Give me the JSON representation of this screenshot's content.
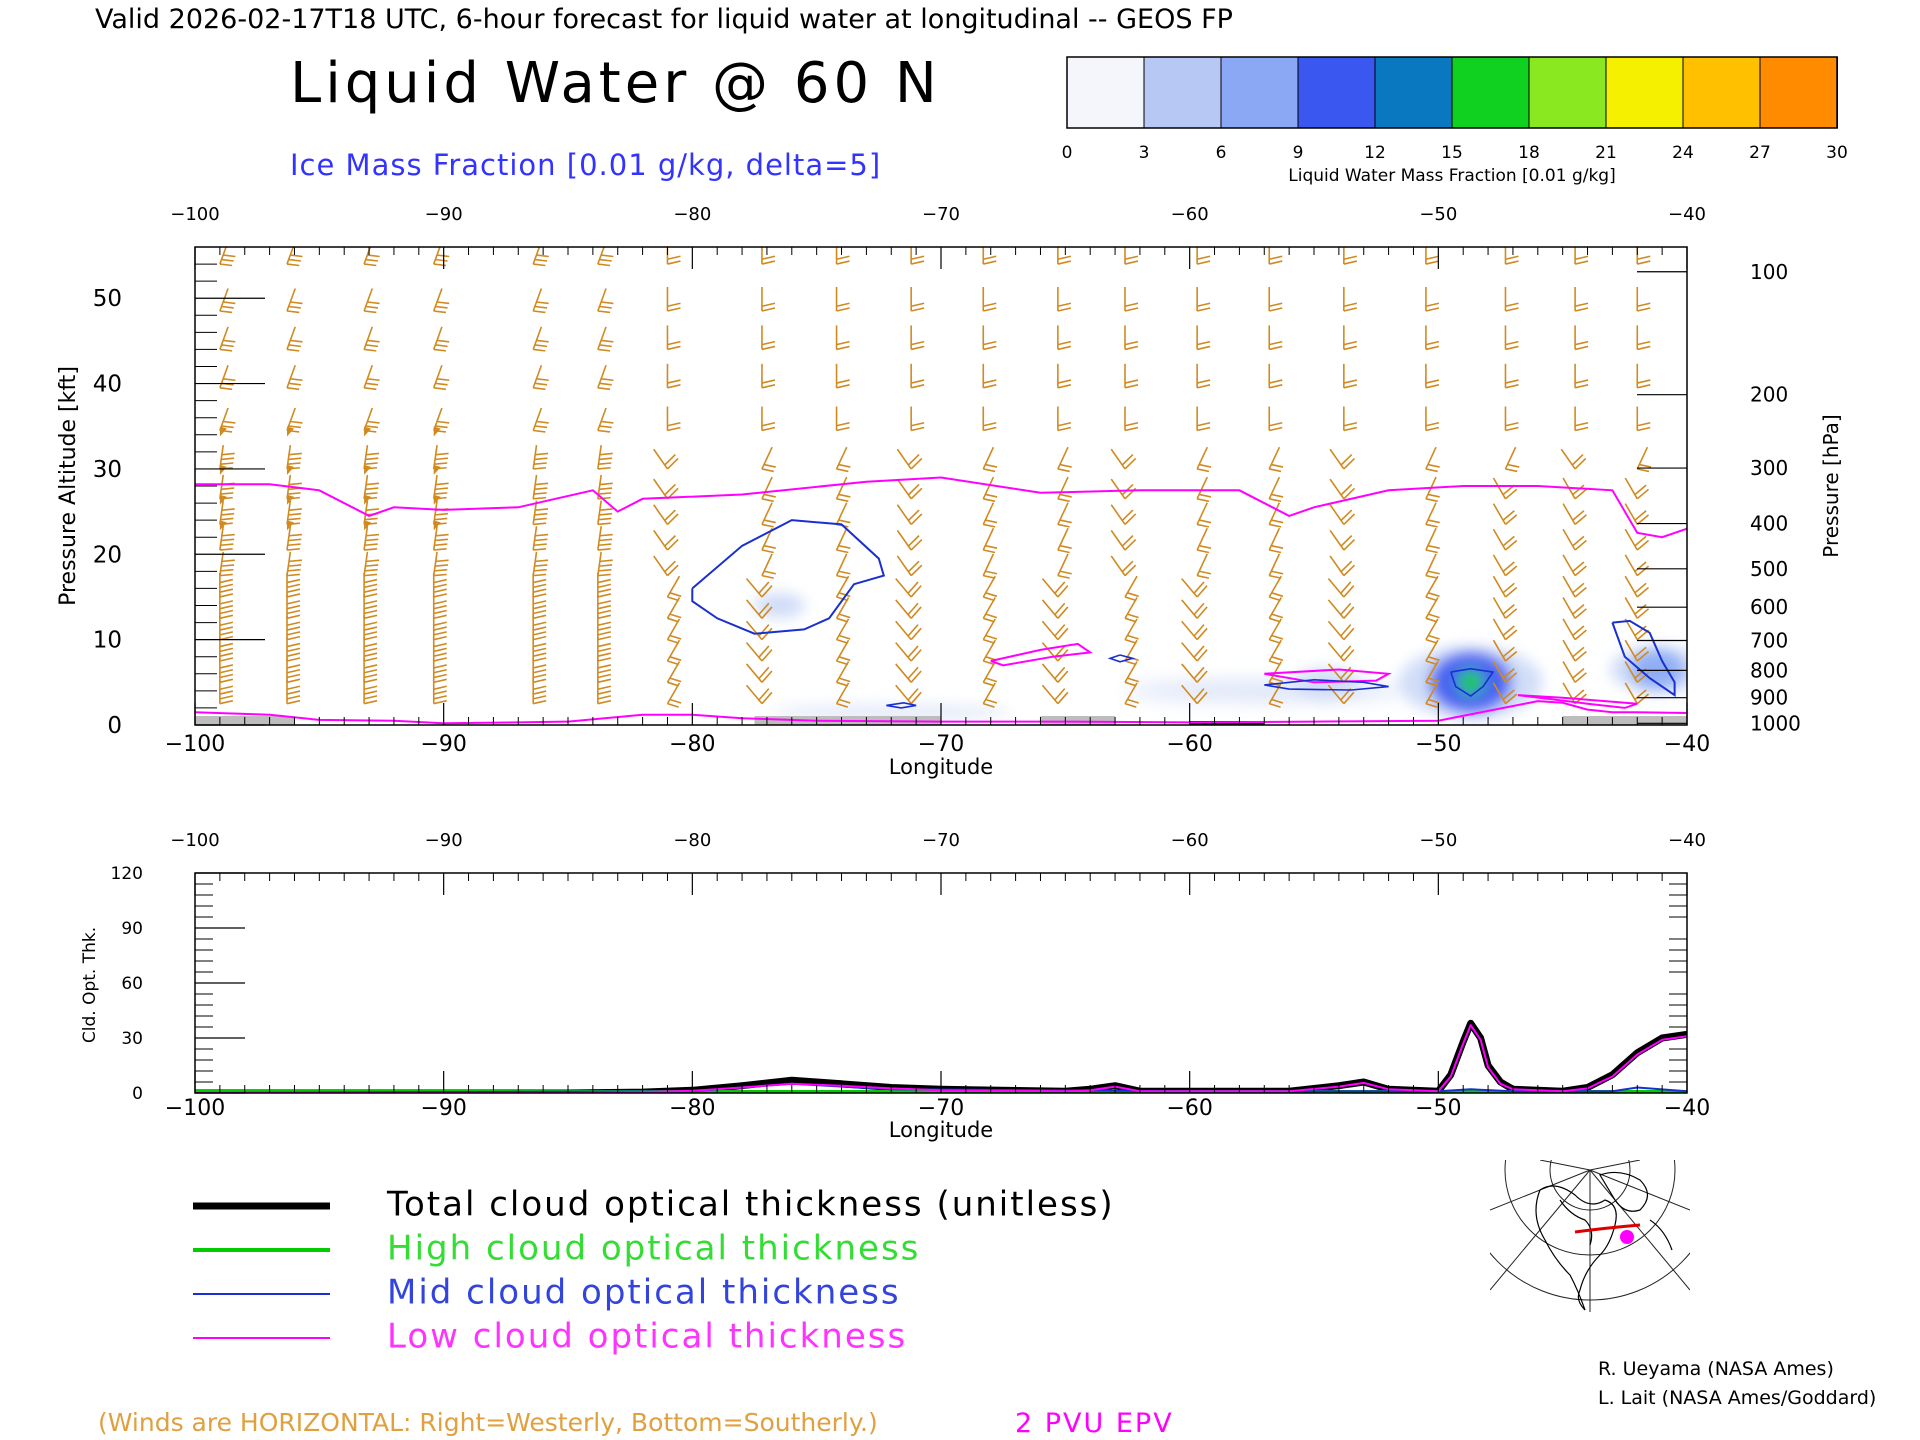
{
  "header": {
    "valid_line": "Valid 2026-02-17T18 UTC, 6-hour forecast for liquid water at longitudinal -- GEOS FP",
    "title": "Liquid Water @ 60 N",
    "subtitle": "Ice Mass Fraction [0.01 g/kg, delta=5]"
  },
  "colors": {
    "wind_barb": "#d08a20",
    "ice_contour": "#1a2fd0",
    "pv_line": "#ff00ff",
    "total": "#000000",
    "high": "#00cc00",
    "mid": "#1a2fd0",
    "low": "#ff00ff",
    "subtitle": "#3333ff",
    "winds_note": "#e0a040"
  },
  "colorbar": {
    "label": "Liquid Water Mass Fraction [0.01 g/kg]",
    "ticks": [
      0,
      3,
      6,
      9,
      12,
      15,
      18,
      21,
      24,
      27,
      30
    ],
    "colors": [
      "#f4f6fc",
      "#b8c8f4",
      "#8aa8f4",
      "#3a58f0",
      "#0a78c0",
      "#10d020",
      "#8ae820",
      "#f4f000",
      "#ffc000",
      "#ff8c00",
      "#ff3000"
    ]
  },
  "chart_data": [
    {
      "type": "heatmap",
      "title": "Liquid Water @ 60 N",
      "xlabel": "Longitude",
      "ylabel": "Pressure Altitude [kft]",
      "y2label": "Pressure [hPa]",
      "xlim": [
        -100,
        -40
      ],
      "ylim": [
        0,
        56
      ],
      "x_ticks": [
        -100,
        -90,
        -80,
        -70,
        -60,
        -50,
        -40
      ],
      "y_ticks": [
        0,
        10,
        20,
        30,
        40,
        50
      ],
      "pressure_ticks": [
        {
          "hPa": 100,
          "kft": 53.1
        },
        {
          "hPa": 200,
          "kft": 38.7
        },
        {
          "hPa": 300,
          "kft": 30.1
        },
        {
          "hPa": 400,
          "kft": 23.6
        },
        {
          "hPa": 500,
          "kft": 18.3
        },
        {
          "hPa": 600,
          "kft": 13.8
        },
        {
          "hPa": 700,
          "kft": 9.9
        },
        {
          "hPa": 800,
          "kft": 6.4
        },
        {
          "hPa": 900,
          "kft": 3.2
        },
        {
          "hPa": 1000,
          "kft": 0.2
        }
      ],
      "pv2_line": {
        "name": "2 PVU EPV",
        "lon": [
          -100,
          -97,
          -95,
          -93,
          -92,
          -90,
          -87,
          -84,
          -83,
          -82,
          -78,
          -73,
          -70,
          -66,
          -62,
          -58,
          -56,
          -55,
          -52,
          -49,
          -46,
          -43,
          -42,
          -41,
          -40
        ],
        "kft": [
          28.2,
          28.2,
          27.5,
          24.5,
          25.5,
          25.2,
          25.5,
          27.5,
          25.0,
          26.5,
          27.0,
          28.5,
          29.0,
          27.2,
          27.5,
          27.5,
          24.5,
          25.5,
          27.5,
          28.0,
          28.0,
          27.5,
          22.5,
          22.0,
          23.0
        ]
      },
      "pv2_low_line": {
        "lon": [
          -100,
          -97,
          -95,
          -92,
          -90,
          -87,
          -85,
          -82,
          -80,
          -78,
          -75,
          -70,
          -65,
          -60,
          -55,
          -50,
          -46,
          -45,
          -44,
          -43,
          -42,
          -40
        ],
        "kft": [
          1.5,
          1.2,
          0.6,
          0.5,
          0.2,
          0.3,
          0.4,
          1.2,
          1.2,
          0.8,
          0.5,
          0.4,
          0.4,
          0.3,
          0.4,
          0.5,
          2.8,
          2.6,
          1.8,
          1.5,
          1.5,
          1.4
        ]
      },
      "ice_contours": [
        {
          "lon": [
            -80,
            -78,
            -76,
            -74,
            -72.5,
            -72.3,
            -73.5,
            -74.5,
            -75.5,
            -77.5,
            -79,
            -80,
            -80
          ],
          "kft": [
            16,
            21,
            24,
            23.5,
            19.5,
            17.5,
            16.5,
            12.5,
            11.2,
            10.7,
            12.5,
            14.5,
            16
          ]
        },
        {
          "lon": [
            -43,
            -42.3,
            -41.5,
            -41,
            -40.5,
            -40.5,
            -41.5,
            -42.5,
            -43
          ],
          "kft": [
            12,
            12.2,
            10.8,
            7.5,
            5,
            3.5,
            5.5,
            8,
            12
          ]
        }
      ],
      "liquid_blobs": [
        {
          "lon": -48.7,
          "kft": 5.0,
          "peak": 17
        },
        {
          "lon": -41.2,
          "kft": 6.5,
          "peak": 9
        },
        {
          "lon": -54.5,
          "kft": 4.8,
          "peak": 4
        },
        {
          "lon": -76.5,
          "kft": 14.0,
          "peak": 2
        }
      ],
      "wind_columns_lon": [
        -99,
        -96.3,
        -93.2,
        -90.4,
        -86.4,
        -83.8,
        -81,
        -77.2,
        -74.2,
        -71.2,
        -68.3,
        -65.3,
        -62.6,
        -59.7,
        -56.8,
        -53.8,
        -50.5,
        -47.3,
        -44.5,
        -42
      ]
    },
    {
      "type": "line",
      "xlabel": "Longitude",
      "ylabel": "Cld. Opt. Thk.",
      "xlim": [
        -100,
        -40
      ],
      "ylim": [
        0,
        120
      ],
      "x_ticks": [
        -100,
        -90,
        -80,
        -70,
        -60,
        -50,
        -40
      ],
      "y_ticks": [
        0,
        30,
        60,
        90,
        120
      ],
      "series": [
        {
          "name": "Total cloud optical thickness (unitless)",
          "x": [
            -100,
            -85,
            -82,
            -80,
            -78,
            -76,
            -74,
            -72,
            -70,
            -65,
            -64,
            -63,
            -62,
            -58,
            -56,
            -54,
            -53,
            -52,
            -50,
            -49.5,
            -49,
            -48.7,
            -48.3,
            -48,
            -47.5,
            -47,
            -45,
            -44,
            -43,
            -42,
            -41,
            -40
          ],
          "y": [
            0,
            0,
            0.5,
            1.5,
            4,
            7,
            5,
            3,
            2,
            1,
            2,
            4,
            1,
            1,
            1,
            4,
            6,
            2,
            1,
            10,
            28,
            38,
            30,
            15,
            6,
            2,
            1,
            3,
            10,
            22,
            30,
            32
          ]
        },
        {
          "name": "High cloud optical thickness",
          "x": [
            -100,
            -40
          ],
          "y": [
            0,
            0
          ]
        },
        {
          "name": "Mid cloud optical thickness",
          "x": [
            -100,
            -80,
            -76,
            -72,
            -60,
            -50,
            -48.7,
            -47,
            -43,
            -42,
            -40
          ],
          "y": [
            0,
            1,
            5,
            2,
            1,
            1,
            2,
            1,
            1,
            3,
            1
          ]
        },
        {
          "name": "Low cloud optical thickness",
          "x": [
            -100,
            -85,
            -82,
            -80,
            -78,
            -76,
            -74,
            -72,
            -70,
            -65,
            -64,
            -63,
            -62,
            -58,
            -56,
            -54,
            -53,
            -52,
            -50,
            -49.5,
            -49,
            -48.7,
            -48.3,
            -48,
            -47.5,
            -47,
            -45,
            -44,
            -43,
            -42,
            -41,
            -40
          ],
          "y": [
            0,
            0,
            0.5,
            1.2,
            3,
            5,
            4,
            2.5,
            1.5,
            1,
            1.5,
            3.5,
            1,
            1,
            1,
            3.5,
            5.5,
            2,
            1,
            9,
            27,
            37,
            29,
            14,
            5,
            2,
            1,
            2.5,
            9,
            21,
            29,
            31
          ]
        }
      ]
    }
  ],
  "legend": {
    "items": [
      {
        "label": "Total cloud optical thickness (unitless)",
        "color": "#000000"
      },
      {
        "label": "High cloud optical thickness",
        "color": "#00cc00"
      },
      {
        "label": "Mid cloud optical thickness",
        "color": "#1a2fd0"
      },
      {
        "label": "Low cloud optical thickness",
        "color": "#ff00ff"
      }
    ]
  },
  "footer": {
    "winds_note": "(Winds are HORIZONTAL: Right=Westerly, Bottom=Southerly.)",
    "pv_label": "2 PVU EPV",
    "credit1": "R. Ueyama (NASA Ames)",
    "credit2": "L. Lait (NASA Ames/Goddard)"
  },
  "inset_map": {
    "icon": "polar-map-icon"
  }
}
